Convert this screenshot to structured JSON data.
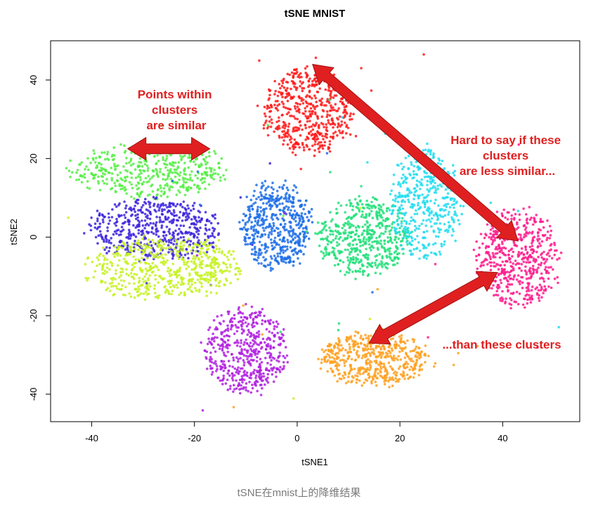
{
  "chart_data": {
    "type": "scatter",
    "title": "tSNE MNIST",
    "xlabel": "tSNE1",
    "ylabel": "tSNE2",
    "xlim": [
      -48,
      55
    ],
    "ylim": [
      -47,
      50
    ],
    "xticks": [
      -40,
      -20,
      0,
      20,
      40
    ],
    "yticks": [
      -40,
      -20,
      0,
      20,
      40
    ],
    "xtick_labels": [
      "-40",
      "-20",
      "0",
      "20",
      "40"
    ],
    "ytick_labels": [
      "-40",
      "-20",
      "0",
      "20",
      "40"
    ],
    "grid": false,
    "legend": "none",
    "clusters": [
      {
        "color": "#ff1a1a",
        "center": [
          2,
          32
        ],
        "spread": [
          9,
          11
        ],
        "approx_points": 520
      },
      {
        "color": "#55ee44",
        "center": [
          -29,
          17
        ],
        "spread": [
          15,
          7
        ],
        "approx_points": 450
      },
      {
        "color": "#3a22dd",
        "center": [
          -28,
          2
        ],
        "spread": [
          13,
          8
        ],
        "approx_points": 520
      },
      {
        "color": "#c4f21e",
        "center": [
          -26,
          -8
        ],
        "spread": [
          15,
          8
        ],
        "approx_points": 560
      },
      {
        "color": "#1f6fe8",
        "center": [
          -4,
          3
        ],
        "spread": [
          7,
          11
        ],
        "approx_points": 520
      },
      {
        "color": "#22e07a",
        "center": [
          13,
          0
        ],
        "spread": [
          9,
          10
        ],
        "approx_points": 520
      },
      {
        "color": "#22ddf0",
        "center": [
          25,
          8
        ],
        "spread": [
          7,
          14
        ],
        "approx_points": 450
      },
      {
        "color": "#ff1a8c",
        "center": [
          43,
          -5
        ],
        "spread": [
          8,
          13
        ],
        "approx_points": 520
      },
      {
        "color": "#b020e0",
        "center": [
          -10,
          -29
        ],
        "spread": [
          8,
          11
        ],
        "approx_points": 500
      },
      {
        "color": "#ffa020",
        "center": [
          15,
          -31
        ],
        "spread": [
          11,
          7
        ],
        "approx_points": 520
      }
    ],
    "annotations": [
      {
        "text": [
          "Points within",
          "clusters",
          "are similar"
        ],
        "color": "#e02020"
      },
      {
        "text": [
          "Hard to say if these",
          "clusters",
          "are less similar..."
        ],
        "color": "#e02020"
      },
      {
        "text": [
          "...than these clusters"
        ],
        "color": "#e02020"
      }
    ],
    "arrows": [
      {
        "from": [
          -33,
          22.5
        ],
        "to": [
          -17,
          22.5
        ],
        "color": "#e02020"
      },
      {
        "from": [
          3,
          44
        ],
        "to": [
          43,
          -1
        ],
        "color": "#e02020"
      },
      {
        "from": [
          39,
          -9
        ],
        "to": [
          14,
          -27
        ],
        "color": "#e02020"
      }
    ]
  },
  "caption": "tSNE在mnist上的降维结果"
}
